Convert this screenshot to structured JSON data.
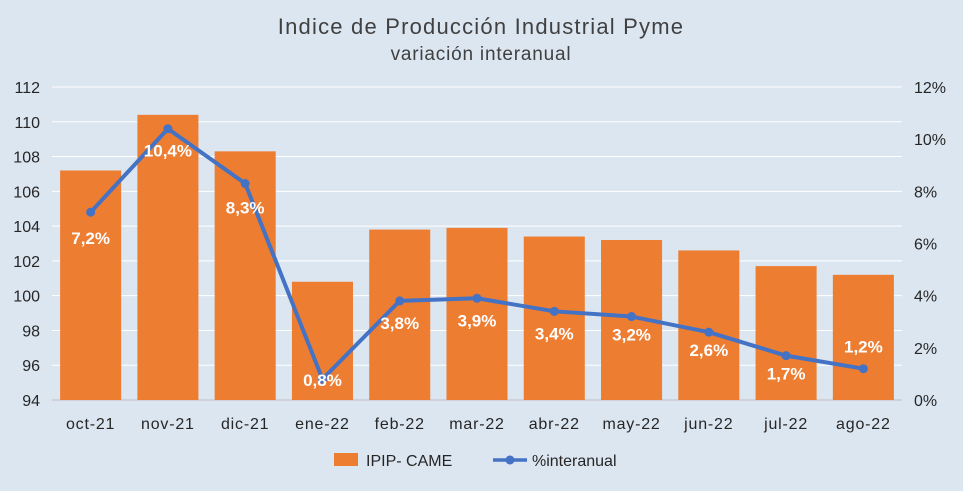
{
  "chart_data": {
    "type": "bar",
    "title": "Indice de Producción Industrial Pyme",
    "subtitle": "variación interanual",
    "categories": [
      "oct-21",
      "nov-21",
      "dic-21",
      "ene-22",
      "feb-22",
      "mar-22",
      "abr-22",
      "may-22",
      "jun-22",
      "jul-22",
      "ago-22"
    ],
    "series": [
      {
        "name": "IPIP- CAME",
        "type": "bar",
        "axis": "left",
        "color": "#ed7d31",
        "values": [
          107.2,
          110.4,
          108.3,
          100.8,
          103.8,
          103.9,
          103.4,
          103.2,
          102.6,
          101.7,
          101.2
        ]
      },
      {
        "name": "%interanual",
        "type": "line",
        "axis": "right",
        "color": "#4472c4",
        "values": [
          7.2,
          10.4,
          8.3,
          0.8,
          3.8,
          3.9,
          3.4,
          3.2,
          2.6,
          1.7,
          1.2
        ],
        "labels": [
          "7,2%",
          "10,4%",
          "8,3%",
          "0,8%",
          "3,8%",
          "3,9%",
          "3,4%",
          "3,2%",
          "2,6%",
          "1,7%",
          "1,2%"
        ]
      }
    ],
    "y_left": {
      "min": 94,
      "max": 112,
      "ticks": [
        "94",
        "96",
        "98",
        "100",
        "102",
        "104",
        "106",
        "108",
        "110",
        "112"
      ]
    },
    "y_right": {
      "min": 0,
      "max": 12,
      "ticks": [
        "0%",
        "2%",
        "4%",
        "6%",
        "8%",
        "10%",
        "12%"
      ]
    },
    "grid": true,
    "legend": "bottom"
  }
}
